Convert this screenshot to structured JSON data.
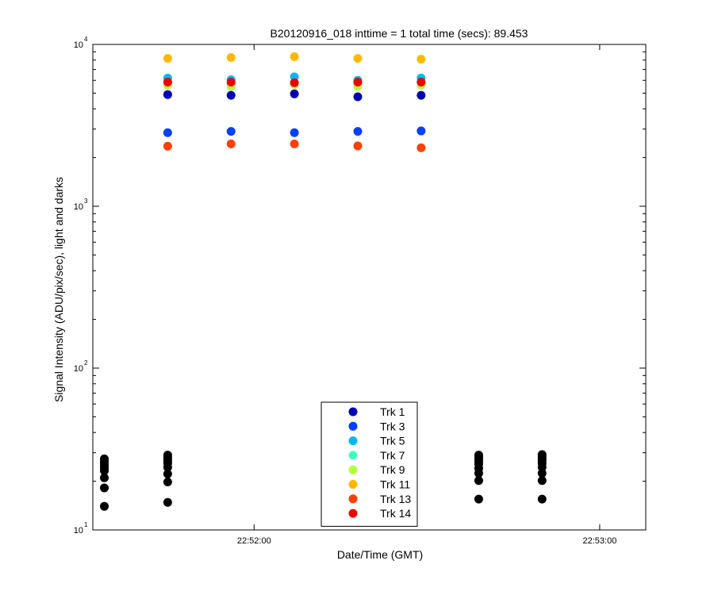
{
  "chart_data": {
    "type": "scatter",
    "title": "B20120916_018 inttime = 1 total time (secs): 89.453",
    "xlabel": "Date/Time (GMT)",
    "ylabel": "Signal Intensity (ADU/pix/sec), light and darks",
    "yscale": "log",
    "ylim": [
      10,
      10000
    ],
    "xlim": [
      "22:51:32",
      "22:53:08"
    ],
    "x_ticks": [
      "22:52:00",
      "22:53:00"
    ],
    "y_ticks": [
      {
        "base": "10",
        "exp": "1"
      },
      {
        "base": "10",
        "exp": "2"
      },
      {
        "base": "10",
        "exp": "3"
      },
      {
        "base": "10",
        "exp": "4"
      }
    ],
    "legend_position": "bottom-center",
    "x_light": [
      "22:51:45",
      "22:51:56",
      "22:52:07",
      "22:52:18",
      "22:52:29"
    ],
    "series": [
      {
        "name": "Trk 1",
        "color": "#0000b0",
        "values": [
          4900,
          4850,
          4950,
          4750,
          4850
        ]
      },
      {
        "name": "Trk 3",
        "color": "#0040ff",
        "values": [
          2850,
          2900,
          2850,
          2900,
          2920
        ]
      },
      {
        "name": "Trk 5",
        "color": "#00b8ee",
        "values": [
          6200,
          6050,
          6300,
          6000,
          6200
        ]
      },
      {
        "name": "Trk 7",
        "color": "#40ffc0",
        "values": [
          5800,
          5700,
          5800,
          5700,
          5800
        ]
      },
      {
        "name": "Trk 9",
        "color": "#b0ff40",
        "values": [
          5600,
          5500,
          5650,
          5500,
          5600
        ]
      },
      {
        "name": "Trk 11",
        "color": "#ffb800",
        "values": [
          8200,
          8300,
          8400,
          8200,
          8100
        ]
      },
      {
        "name": "Trk 13",
        "color": "#ff4000",
        "values": [
          2350,
          2430,
          2430,
          2360,
          2300
        ]
      },
      {
        "name": "Trk 14",
        "color": "#ee0000",
        "values": [
          5850,
          5850,
          5800,
          5850,
          5850
        ]
      }
    ],
    "darks": {
      "color": "#000000",
      "groups": [
        {
          "x": "22:51:34",
          "values": [
            27.5,
            26.5,
            25.8,
            25.0,
            24.2,
            23.2,
            21.0,
            18.2,
            14.0
          ]
        },
        {
          "x": "22:51:45",
          "values": [
            29.0,
            28.2,
            27.4,
            26.6,
            25.8,
            24.4,
            22.2,
            19.8,
            14.8
          ]
        },
        {
          "x": "22:52:39",
          "values": [
            29.0,
            28.2,
            27.4,
            26.5,
            25.5,
            24.0,
            22.4,
            20.2,
            15.5
          ]
        },
        {
          "x": "22:52:50",
          "values": [
            29.2,
            28.4,
            27.6,
            26.8,
            25.8,
            24.4,
            22.4,
            20.2,
            15.5
          ]
        }
      ]
    }
  }
}
